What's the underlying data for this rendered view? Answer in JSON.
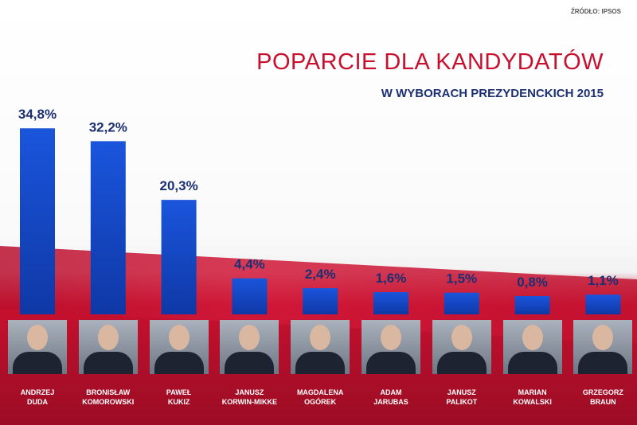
{
  "source": "ŹRÓDŁO: IPSOS",
  "chart_data": {
    "type": "bar",
    "title": "POPARCIE DLA KANDYDATÓW",
    "subtitle": "W WYBORACH PREZYDENCKICH 2015",
    "categories": [
      "ANDRZEJ DUDA",
      "BRONISŁAW KOMOROWSKI",
      "PAWEŁ KUKIZ",
      "JANUSZ KORWIN-MIKKE",
      "MAGDALENA OGÓREK",
      "ADAM JARUBAS",
      "JANUSZ PALIKOT",
      "MARIAN KOWALSKI",
      "GRZEGORZ BRAUN"
    ],
    "name_lines": [
      [
        "ANDRZEJ",
        "DUDA"
      ],
      [
        "BRONISŁAW",
        "KOMOROWSKI"
      ],
      [
        "PAWEŁ",
        "KUKIZ"
      ],
      [
        "JANUSZ",
        "KORWIN-MIKKE"
      ],
      [
        "MAGDALENA",
        "OGÓREK"
      ],
      [
        "ADAM",
        "JARUBAS"
      ],
      [
        "JANUSZ",
        "PALIKOT"
      ],
      [
        "MARIAN",
        "KOWALSKI"
      ],
      [
        "GRZEGORZ",
        "BRAUN"
      ]
    ],
    "values": [
      34.8,
      32.2,
      20.3,
      4.4,
      2.4,
      1.6,
      1.5,
      0.8,
      1.1
    ],
    "labels": [
      "34,8%",
      "32,2%",
      "20,3%",
      "4,4%",
      "2,4%",
      "1,6%",
      "1,5%",
      "0,8%",
      "1,1%"
    ],
    "unit": "%",
    "xlabel": "",
    "ylabel": ""
  },
  "colors": {
    "bar": "#1446c4",
    "title": "#c8102e",
    "value": "#1b2f72"
  }
}
